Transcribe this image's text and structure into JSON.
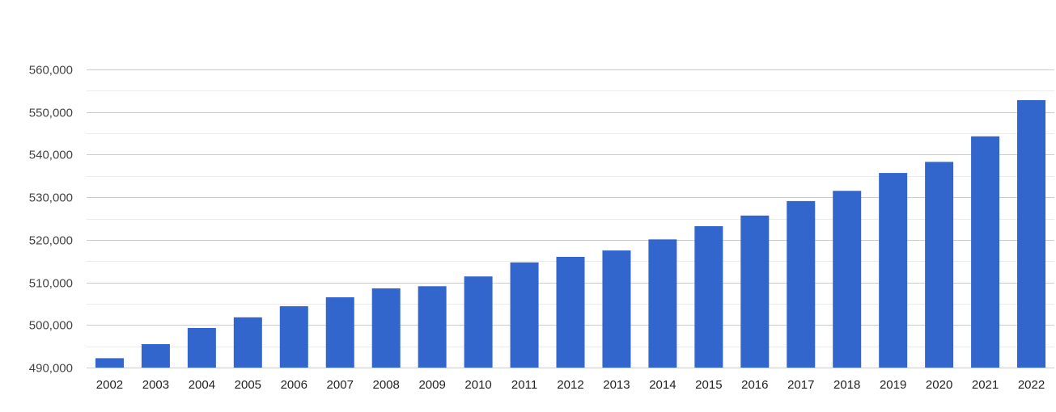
{
  "chart_data": {
    "type": "bar",
    "title": "",
    "xlabel": "",
    "ylabel": "",
    "categories": [
      "2002",
      "2003",
      "2004",
      "2005",
      "2006",
      "2007",
      "2008",
      "2009",
      "2010",
      "2011",
      "2012",
      "2013",
      "2014",
      "2015",
      "2016",
      "2017",
      "2018",
      "2019",
      "2020",
      "2021",
      "2022"
    ],
    "values": [
      492200,
      495500,
      499300,
      501800,
      504400,
      506500,
      508600,
      509100,
      511400,
      514700,
      516000,
      517500,
      520100,
      523200,
      525700,
      529100,
      531500,
      535700,
      538300,
      544300,
      552800
    ],
    "ylim": [
      490000,
      560000
    ],
    "yticks": [
      490000,
      500000,
      510000,
      520000,
      530000,
      540000,
      550000,
      560000
    ],
    "ytick_labels": [
      "490,000",
      "500,000",
      "510,000",
      "520,000",
      "530,000",
      "540,000",
      "550,000",
      "560,000"
    ],
    "minor_gridlines": true,
    "grid": true,
    "legend": "none",
    "colors": {
      "bar": "#3366cc",
      "grid_major": "#cccccc",
      "grid_minor": "#ebebeb"
    }
  }
}
